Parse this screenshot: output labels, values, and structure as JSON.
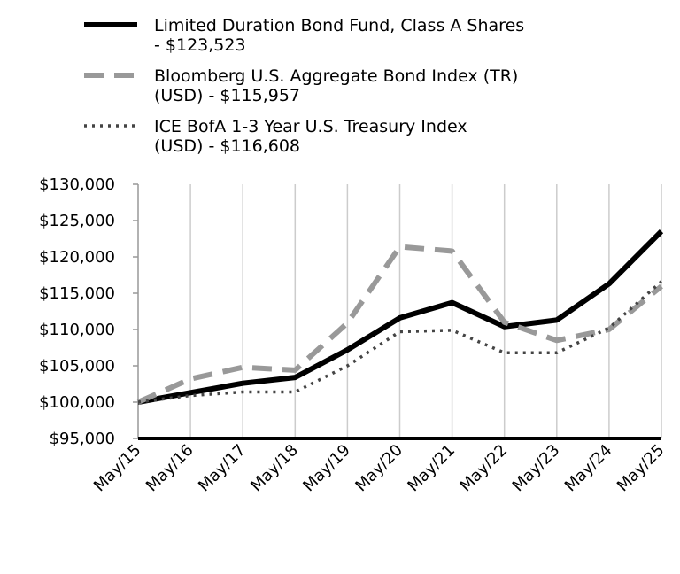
{
  "chart_data": {
    "type": "line",
    "categories": [
      "May/15",
      "May/16",
      "May/17",
      "May/18",
      "May/19",
      "May/20",
      "May/21",
      "May/22",
      "May/23",
      "May/24",
      "May/25"
    ],
    "ylim": [
      95000,
      130000
    ],
    "yticks": [
      95000,
      100000,
      105000,
      110000,
      115000,
      120000,
      125000,
      130000
    ],
    "ytick_labels": [
      "$95,000",
      "$100,000",
      "$105,000",
      "$110,000",
      "$115,000",
      "$120,000",
      "$125,000",
      "$130,000"
    ],
    "grid": "vertical",
    "legend_position": "top-left",
    "series": [
      {
        "name": "Limited Duration Bond Fund, Class A Shares",
        "legend_lines": [
          "Limited Duration Bond Fund, Class A Shares",
          " - $123,523"
        ],
        "color": "#000000",
        "style": "solid",
        "values": [
          100000,
          101300,
          102600,
          103400,
          107200,
          111600,
          113700,
          110400,
          111300,
          116300,
          123523
        ]
      },
      {
        "name": "Bloomberg U.S. Aggregate Bond Index (TR) (USD)",
        "legend_lines": [
          "Bloomberg U.S. Aggregate Bond Index (TR)",
          "(USD) - $115,957"
        ],
        "color": "#999999",
        "style": "dashed",
        "values": [
          100000,
          103200,
          104800,
          104400,
          110900,
          121400,
          120800,
          111000,
          108500,
          110000,
          115957
        ]
      },
      {
        "name": "ICE BofA 1-3 Year U.S. Treasury Index (USD)",
        "legend_lines": [
          "ICE BofA 1-3 Year U.S. Treasury Index",
          "(USD) - $116,608"
        ],
        "color": "#444444",
        "style": "dotted",
        "values": [
          100000,
          100900,
          101400,
          101400,
          105000,
          109700,
          109900,
          106800,
          106800,
          110200,
          116608
        ]
      }
    ]
  }
}
